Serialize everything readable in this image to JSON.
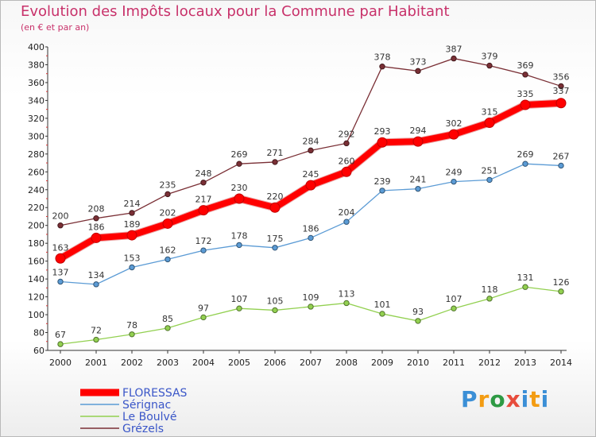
{
  "title": "Evolution des Impôts locaux pour la Commune par Habitant",
  "subtitle": "(en € et par an)",
  "logo": {
    "text": "Proxiti",
    "letters": [
      "P",
      "r",
      "o",
      "x",
      "i",
      "t",
      "i"
    ]
  },
  "chart_data": {
    "type": "line",
    "x": [
      "2000",
      "2001",
      "2002",
      "2003",
      "2004",
      "2005",
      "2006",
      "2007",
      "2008",
      "2009",
      "2010",
      "2011",
      "2012",
      "2013",
      "2014"
    ],
    "ylim": [
      60,
      400
    ],
    "yticks": [
      60,
      80,
      100,
      120,
      140,
      160,
      180,
      200,
      220,
      240,
      260,
      280,
      300,
      320,
      340,
      360,
      380,
      400
    ],
    "grid": false,
    "legend_position": "bottom-left",
    "series": [
      {
        "name": "Grézels",
        "color": "#7a2f35",
        "values": [
          200,
          208,
          214,
          235,
          248,
          269,
          271,
          284,
          292,
          378,
          373,
          387,
          379,
          369,
          356
        ]
      },
      {
        "name": "Sérignac",
        "color": "#5b9bd5",
        "values": [
          137,
          134,
          153,
          162,
          172,
          178,
          175,
          186,
          204,
          239,
          241,
          249,
          251,
          269,
          267
        ]
      },
      {
        "name": "Le Boulvé",
        "color": "#92d050",
        "values": [
          67,
          72,
          78,
          85,
          97,
          107,
          105,
          109,
          113,
          101,
          93,
          107,
          118,
          131,
          126
        ]
      },
      {
        "name": "FLORESSAS",
        "color": "#ff0000",
        "values": [
          163,
          186,
          189,
          202,
          217,
          230,
          220,
          245,
          260,
          293,
          294,
          302,
          315,
          335,
          337
        ]
      }
    ],
    "legend_order": [
      "FLORESSAS",
      "Sérignac",
      "Le Boulvé",
      "Grézels"
    ]
  }
}
